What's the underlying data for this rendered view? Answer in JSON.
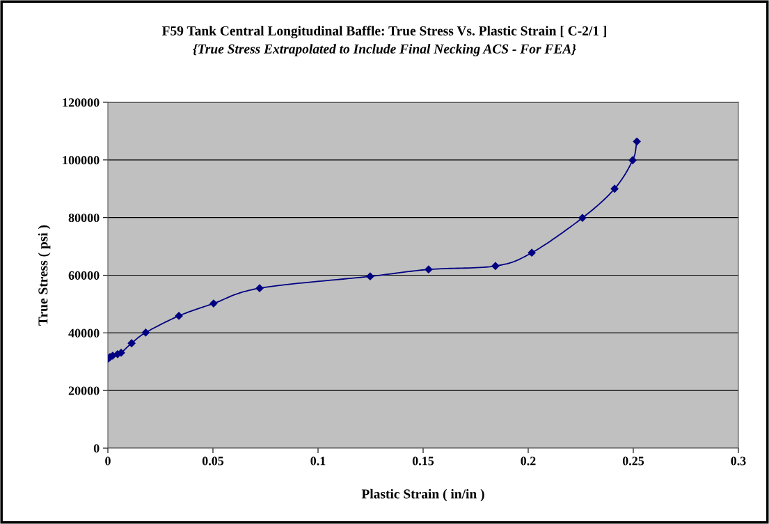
{
  "chart_data": {
    "type": "line",
    "title": "F59 Tank Central Longitudinal Baffle: True Stress Vs. Plastic Strain [ C-2/1 ]",
    "subtitle": "{True Stress Extrapolated to Include Final Necking ACS - For FEA}",
    "xlabel": "Plastic Strain ( in/in )",
    "ylabel": "True Stress ( psi )",
    "x": [
      0.0003,
      0.001,
      0.0023,
      0.0046,
      0.0063,
      0.0113,
      0.018,
      0.0338,
      0.0503,
      0.0722,
      0.1248,
      0.1526,
      0.1844,
      0.2017,
      0.2258,
      0.2411,
      0.2497,
      0.2517
    ],
    "series": [
      {
        "color": "#000080",
        "values": [
          31100,
          31600,
          32100,
          32600,
          33100,
          36400,
          40100,
          45900,
          50200,
          55500,
          59600,
          62000,
          63200,
          67800,
          79900,
          90000,
          99900,
          106400
        ]
      }
    ],
    "xlim": [
      0,
      0.3
    ],
    "xticks": [
      0,
      0.05,
      0.1,
      0.15,
      0.2,
      0.25,
      0.3
    ],
    "ylim": [
      0,
      120000
    ],
    "yticks": [
      0,
      20000,
      40000,
      60000,
      80000,
      100000,
      120000
    ],
    "grid": "y",
    "marker": "diamond",
    "line_style": "solid"
  }
}
